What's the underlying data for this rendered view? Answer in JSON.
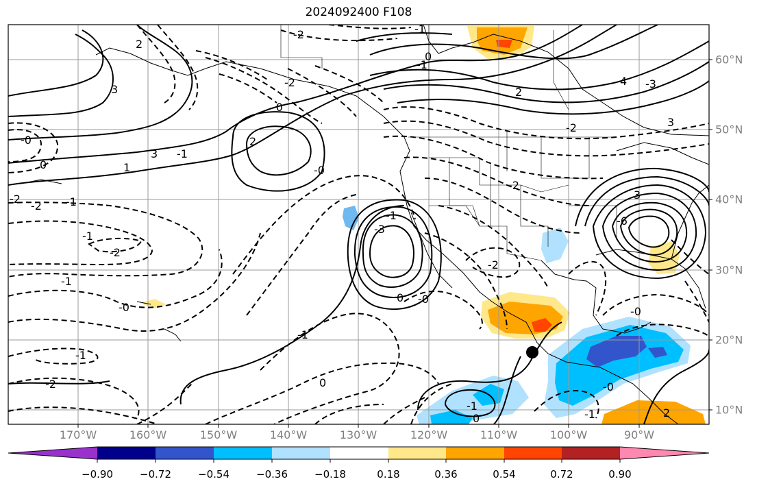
{
  "title": "2024092400 F108",
  "map": {
    "projection": "equirectangular",
    "lon_range": [
      -180,
      -80
    ],
    "lat_range": [
      8,
      65
    ],
    "lon_labels": [
      "170°W",
      "160°W",
      "150°W",
      "140°W",
      "130°W",
      "120°W",
      "110°W",
      "100°W",
      "90°W"
    ],
    "lat_labels": [
      "60°N",
      "50°N",
      "40°N",
      "30°N",
      "20°N",
      "10°N"
    ],
    "gridlines": true,
    "contours": {
      "solid_color": "#000000",
      "dashed_color": "#000000",
      "labels": [
        "-1",
        "-1",
        "0",
        "-2",
        "-2",
        "-0",
        "0",
        "-1",
        "-0",
        "-2",
        "1",
        "3",
        "2",
        "-1",
        "-2",
        "-0",
        "-1",
        "-2",
        "-0",
        "2",
        "3",
        "-1",
        "-3",
        "0",
        "-0",
        "-2",
        "-2",
        "-1",
        "0",
        "4",
        "3",
        "-3",
        "2",
        "-1",
        "-0",
        "-2",
        "-6",
        "3",
        "-1",
        "-0",
        "-1",
        "-2",
        "-1",
        "0",
        "2"
      ]
    },
    "marker": {
      "label": "point",
      "color": "#000000"
    }
  },
  "colorbar": {
    "ticks": [
      "−0.90",
      "−0.72",
      "−0.54",
      "−0.36",
      "−0.18",
      "0.18",
      "0.36",
      "0.54",
      "0.72",
      "0.90"
    ],
    "colors": [
      "#9932cc",
      "#00008b",
      "#3355cc",
      "#00bfff",
      "#b0e2ff",
      "#ffffff",
      "#ffe88a",
      "#ffa500",
      "#ff4500",
      "#b22222",
      "#ff88b0"
    ]
  }
}
